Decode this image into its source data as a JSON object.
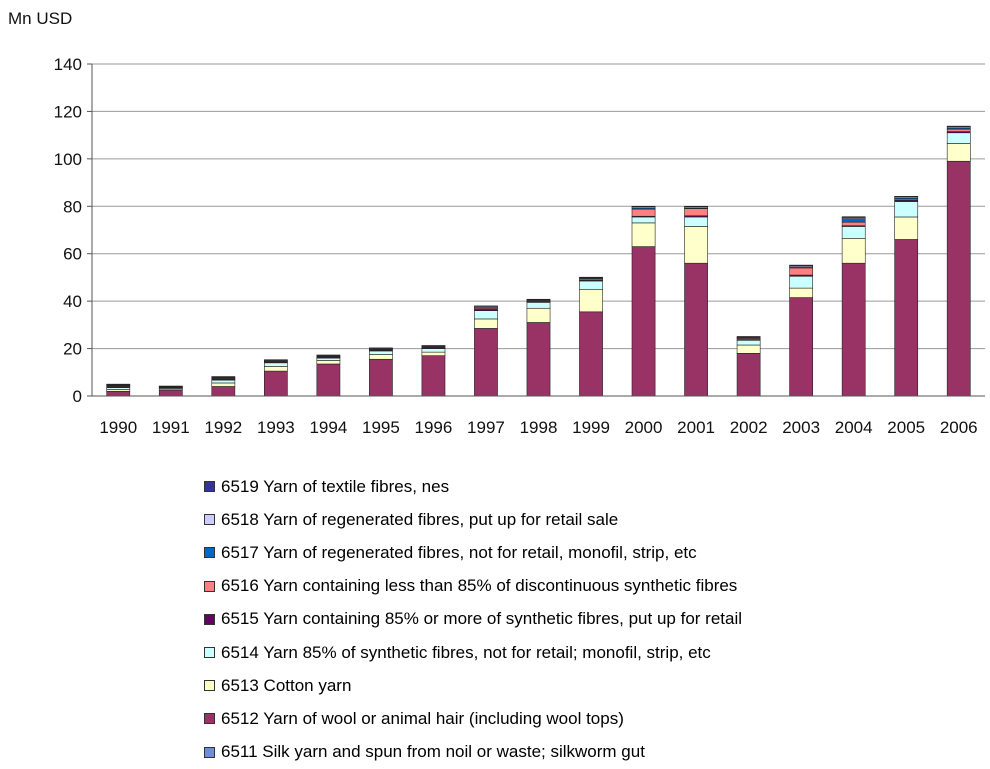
{
  "chart_data": {
    "type": "bar",
    "stacked": true,
    "unit_label": "Mn USD",
    "ylim": [
      0,
      140
    ],
    "yticks": [
      0,
      20,
      40,
      60,
      80,
      100,
      120,
      140
    ],
    "grid": true,
    "legend_position": "bottom",
    "categories": [
      "1990",
      "1991",
      "1992",
      "1993",
      "1994",
      "1995",
      "1996",
      "1997",
      "1998",
      "1999",
      "2000",
      "2001",
      "2002",
      "2003",
      "2004",
      "2005",
      "2006"
    ],
    "series": [
      {
        "name": "6511 Silk yarn and spun from noil or waste; silkworm gut",
        "color": "#6d8fd0",
        "values": [
          0,
          0,
          0,
          0,
          0,
          0,
          0,
          0,
          0,
          0,
          0,
          0,
          0,
          0,
          0,
          0,
          0
        ]
      },
      {
        "name": "6512 Yarn of wool or animal hair (including wool tops)",
        "color": "#993366",
        "values": [
          2,
          2.5,
          4,
          10.5,
          13.5,
          15.5,
          17,
          28.5,
          31,
          35.5,
          63,
          56,
          18,
          41.5,
          56,
          66,
          99
        ]
      },
      {
        "name": "6513 Cotton yarn",
        "color": "#ffffcc",
        "values": [
          0.8,
          0.5,
          1.5,
          2,
          1.5,
          2,
          1.5,
          4,
          6,
          9.5,
          10,
          15.5,
          3.5,
          4,
          10.5,
          9.5,
          7.5
        ]
      },
      {
        "name": "6514 Yarn 85% of synthetic fibres, not for retail; monofil, strip, etc",
        "color": "#ccffff",
        "values": [
          0.7,
          0.4,
          1.2,
          1.5,
          1,
          1.5,
          1.5,
          3.5,
          2.5,
          3.5,
          2.5,
          4,
          2,
          5,
          5,
          6.5,
          4.5
        ]
      },
      {
        "name": "6515 Yarn containing 85% or more of synthetic fibres, put up for retail",
        "color": "#660066",
        "values": [
          0.5,
          0.3,
          0.5,
          0.3,
          0.3,
          0.3,
          0.3,
          0.5,
          0.3,
          0.3,
          0.3,
          0.5,
          0.3,
          0.5,
          0.3,
          0.5,
          0.5
        ]
      },
      {
        "name": "6516 Yarn containing less than 85% of discontinuous synthetic fibres",
        "color": "#ff8080",
        "values": [
          0.3,
          0.1,
          0.3,
          0.3,
          0.3,
          0.3,
          0.3,
          0.5,
          0.3,
          0.5,
          3,
          3,
          0.5,
          3,
          1.5,
          0.5,
          1
        ]
      },
      {
        "name": "6517 Yarn of regenerated fibres, not for retail, monofil, strip, etc",
        "color": "#0066cc",
        "values": [
          0.2,
          0.1,
          0.2,
          0.2,
          0.2,
          0.2,
          0.2,
          0.3,
          0.2,
          0.3,
          0.5,
          0.3,
          0.3,
          0.5,
          1.5,
          0.5,
          0.5
        ]
      },
      {
        "name": "6518 Yarn of regenerated fibres, put up for retail sale",
        "color": "#ccccff",
        "values": [
          0.3,
          0.2,
          0.3,
          0.3,
          0.3,
          0.3,
          0.3,
          0.5,
          0.3,
          0.3,
          0.5,
          0.5,
          0.3,
          0.5,
          0.5,
          0.5,
          0.5
        ]
      },
      {
        "name": "6519 Yarn of textile fibres, nes",
        "color": "#333399",
        "values": [
          0.2,
          0.1,
          0.2,
          0.2,
          0.2,
          0.2,
          0.2,
          0.2,
          0.2,
          0.2,
          0.2,
          0.2,
          0.2,
          0.2,
          0.3,
          0.2,
          0.3
        ]
      }
    ]
  }
}
